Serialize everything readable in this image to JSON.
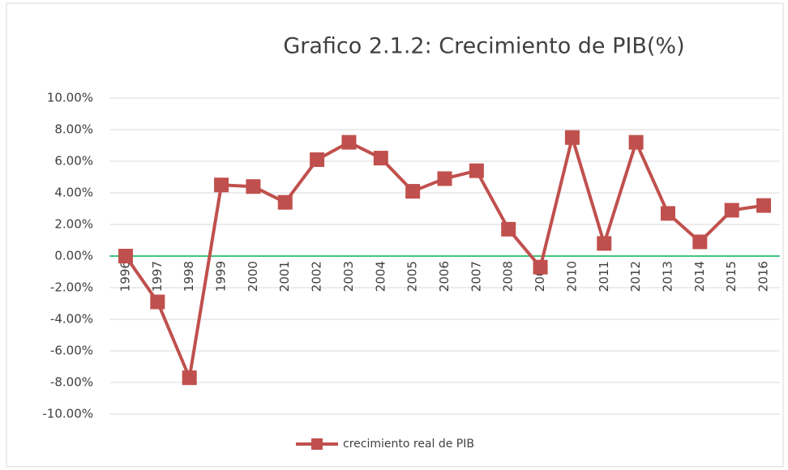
{
  "chart_data": {
    "type": "line",
    "title": "Grafico 2.1.2: Crecimiento de PIB(%)",
    "categories": [
      "1996",
      "1997",
      "1998",
      "1999",
      "2000",
      "2001",
      "2002",
      "2003",
      "2004",
      "2005",
      "2006",
      "2007",
      "2008",
      "2009",
      "2010",
      "2011",
      "2012",
      "2013",
      "2014",
      "2015",
      "2016"
    ],
    "series": [
      {
        "name": "crecimiento real de PIB",
        "color": "#c0504d",
        "values": [
          0.0,
          -2.9,
          -7.7,
          4.5,
          4.4,
          3.4,
          6.1,
          7.2,
          6.2,
          4.1,
          4.9,
          5.4,
          1.7,
          -0.7,
          7.5,
          0.8,
          7.2,
          2.7,
          0.9,
          2.9,
          3.2
        ]
      }
    ],
    "ylim": [
      -10,
      10
    ],
    "yticks": [
      {
        "value": -10,
        "label": "-10.00%"
      },
      {
        "value": -8,
        "label": "-8.00%"
      },
      {
        "value": -6,
        "label": "-6.00%"
      },
      {
        "value": -4,
        "label": "-4.00%"
      },
      {
        "value": -2,
        "label": "-2.00%"
      },
      {
        "value": 0,
        "label": "0.00%"
      },
      {
        "value": 2,
        "label": "2.00%"
      },
      {
        "value": 4,
        "label": "4.00%"
      },
      {
        "value": 6,
        "label": "6.00%"
      },
      {
        "value": 8,
        "label": "8.00%"
      },
      {
        "value": 10,
        "label": "10.00%"
      }
    ],
    "grid": true,
    "zero_line_color": "#00b050",
    "legend": "bottom"
  }
}
